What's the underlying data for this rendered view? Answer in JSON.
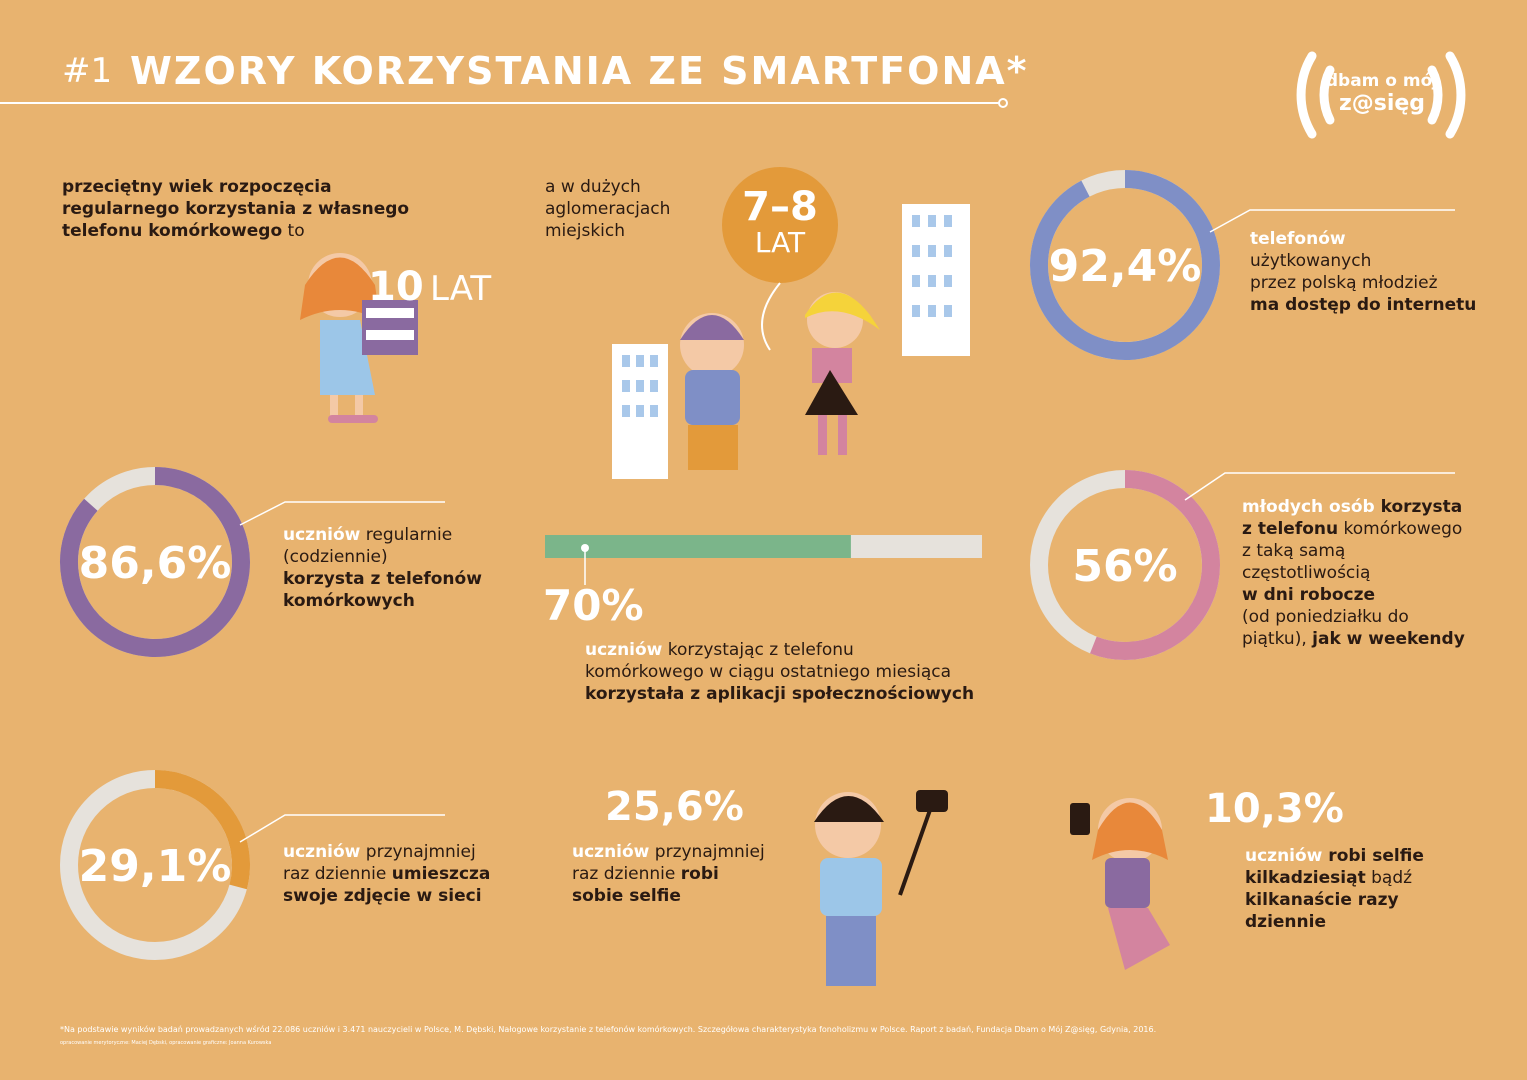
{
  "header": {
    "number": "#1",
    "title": "WZORY KORZYSTANIA ZE SMARTFONA*"
  },
  "logo": {
    "line1": "dbam o mój",
    "line2": "z@sięg"
  },
  "start_age": {
    "lines": [
      [
        {
          "t": "przeciętny wiek rozpoczęcia",
          "style": "bold"
        }
      ],
      [
        {
          "t": "regularnego korzystania z własnego",
          "style": "bold"
        }
      ],
      [
        {
          "t": "telefonu komórkowego",
          "style": "bold"
        },
        {
          "t": " to",
          "style": "normal"
        }
      ]
    ],
    "age": "10",
    "unit": "LAT"
  },
  "city_age": {
    "lines": [
      [
        {
          "t": "a w dużych",
          "style": "normal"
        }
      ],
      [
        {
          "t": "aglomeracjach",
          "style": "normal"
        }
      ],
      [
        {
          "t": "miejskich",
          "style": "normal"
        }
      ]
    ],
    "age": "7–8",
    "unit": "LAT"
  },
  "stats": [
    {
      "value": 92.4,
      "label": "92,4%",
      "color": "#7f8fc6",
      "lines": [
        [
          {
            "t": "telefonów",
            "style": "key"
          }
        ],
        [
          {
            "t": "użytkowanych",
            "style": "normal"
          }
        ],
        [
          {
            "t": "przez polską młodzież",
            "style": "normal"
          }
        ],
        [
          {
            "t": "ma dostęp do internetu",
            "style": "bold"
          }
        ]
      ]
    },
    {
      "value": 86.6,
      "label": "86,6%",
      "color": "#8a6aa0",
      "lines": [
        [
          {
            "t": "uczniów",
            "style": "key"
          },
          {
            "t": " regularnie",
            "style": "normal"
          }
        ],
        [
          {
            "t": "(codziennie)",
            "style": "normal"
          }
        ],
        [
          {
            "t": "korzysta z telefonów",
            "style": "bold"
          }
        ],
        [
          {
            "t": "komórkowych",
            "style": "bold"
          }
        ]
      ]
    },
    {
      "value": 56,
      "label": "56%",
      "color": "#d3849f",
      "lines": [
        [
          {
            "t": "młodych osób",
            "style": "key"
          },
          {
            "t": " korzysta",
            "style": "bold"
          }
        ],
        [
          {
            "t": "z telefonu",
            "style": "bold"
          },
          {
            "t": " komórkowego",
            "style": "normal"
          }
        ],
        [
          {
            "t": "z taką samą",
            "style": "normal"
          }
        ],
        [
          {
            "t": "częstotliwością",
            "style": "normal"
          }
        ],
        [
          {
            "t": "w dni robocze",
            "style": "bold"
          }
        ],
        [
          {
            "t": "(od poniedziałku do",
            "style": "normal"
          }
        ],
        [
          {
            "t": "piątku), ",
            "style": "normal"
          },
          {
            "t": "jak w weekendy",
            "style": "bold"
          }
        ]
      ]
    },
    {
      "value": 29.1,
      "label": "29,1%",
      "color": "#e39a3a",
      "lines": [
        [
          {
            "t": "uczniów",
            "style": "key"
          },
          {
            "t": " przynajmniej",
            "style": "normal"
          }
        ],
        [
          {
            "t": "raz dziennie ",
            "style": "normal"
          },
          {
            "t": "umieszcza",
            "style": "bold"
          }
        ],
        [
          {
            "t": "swoje zdjęcie w sieci",
            "style": "bold"
          }
        ]
      ]
    }
  ],
  "bar": {
    "value": 70,
    "label": "70%",
    "color": "#7bb58a",
    "lines": [
      [
        {
          "t": "uczniów",
          "style": "key"
        },
        {
          "t": " korzystając z telefonu",
          "style": "normal"
        }
      ],
      [
        {
          "t": "komórkowego w ciągu ostatniego miesiąca",
          "style": "normal"
        }
      ],
      [
        {
          "t": "korzystała z aplikacji społecznościowych",
          "style": "bold"
        }
      ]
    ]
  },
  "selfies": [
    {
      "label": "25,6%",
      "lines": [
        [
          {
            "t": "uczniów",
            "style": "key"
          },
          {
            "t": " przynajmniej",
            "style": "normal"
          }
        ],
        [
          {
            "t": "raz dziennie ",
            "style": "normal"
          },
          {
            "t": "robi",
            "style": "bold"
          }
        ],
        [
          {
            "t": "sobie selfie",
            "style": "bold"
          }
        ]
      ]
    },
    {
      "label": "10,3%",
      "lines": [
        [
          {
            "t": "uczniów",
            "style": "key"
          },
          {
            "t": " robi selfie",
            "style": "bold"
          }
        ],
        [
          {
            "t": "kilkadziesiąt",
            "style": "bold"
          },
          {
            "t": " bądź",
            "style": "normal"
          }
        ],
        [
          {
            "t": "kilkanaście razy",
            "style": "bold"
          }
        ],
        [
          {
            "t": "dziennie",
            "style": "bold"
          }
        ]
      ]
    }
  ],
  "footnote": {
    "source": "*Na podstawie wyników badań prowadzanych wśród 22.086 uczniów i 3.471 nauczycieli w Polsce, M. Dębski, Nałogowe korzystanie z telefonów komórkowych. Szczegółowa charakterystyka fonoholizmu w Polsce. Raport z badań, Fundacja Dbam o Mój Z@sięg, Gdynia, 2016.",
    "credits": "opracowanie merytoryczne: Maciej Dębski, opracowanie graficzne: Joanna Kurowska"
  }
}
